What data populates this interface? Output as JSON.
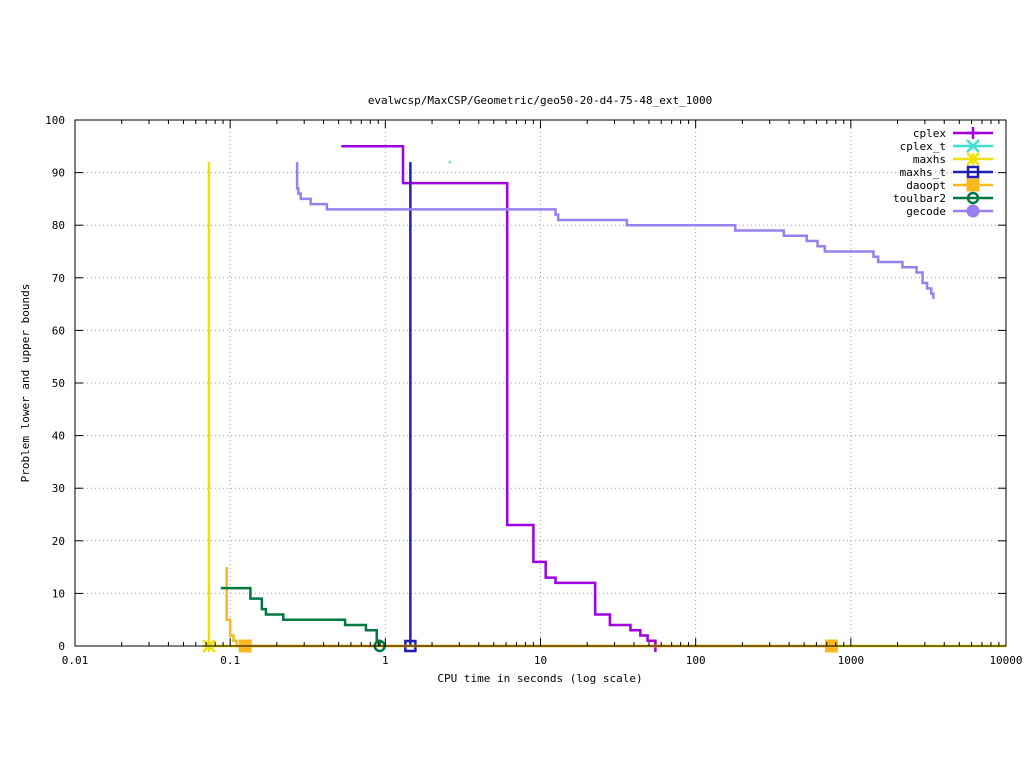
{
  "chart_data": {
    "type": "line",
    "title": "evalwcsp/MaxCSP/Geometric/geo50-20-d4-75-48_ext_1000",
    "xlabel": "CPU time in seconds (log scale)",
    "ylabel": "Problem lower and upper bounds",
    "xscale": "log",
    "xlim": [
      0.01,
      10000
    ],
    "ylim": [
      0,
      100
    ],
    "x_ticks": [
      0.01,
      0.1,
      1,
      10,
      100,
      1000,
      10000
    ],
    "x_tick_labels": [
      "0.01",
      "0.1",
      "1",
      "10",
      "100",
      "1000",
      "10000"
    ],
    "y_ticks": [
      0,
      10,
      20,
      30,
      40,
      50,
      60,
      70,
      80,
      90,
      100
    ],
    "y_tick_labels": [
      "0",
      "10",
      "20",
      "30",
      "40",
      "50",
      "60",
      "70",
      "80",
      "90",
      "100"
    ],
    "legend_position": "top-right",
    "series": [
      {
        "name": "cplex",
        "color": "#a000e0",
        "marker": "plus",
        "step": true,
        "points": [
          [
            0.52,
            95
          ],
          [
            1.3,
            95
          ],
          [
            1.3,
            88
          ],
          [
            6.1,
            88
          ],
          [
            6.1,
            23
          ],
          [
            9.0,
            23
          ],
          [
            9.0,
            16
          ],
          [
            10.8,
            16
          ],
          [
            10.8,
            13
          ],
          [
            12.5,
            13
          ],
          [
            12.5,
            12
          ],
          [
            22.5,
            12
          ],
          [
            22.5,
            6
          ],
          [
            28,
            6
          ],
          [
            28,
            4
          ],
          [
            38,
            4
          ],
          [
            38,
            3
          ],
          [
            44,
            3
          ],
          [
            44,
            2
          ],
          [
            49,
            2
          ],
          [
            49,
            1
          ],
          [
            55,
            1
          ],
          [
            55,
            0
          ]
        ],
        "markers": [
          [
            55,
            0
          ]
        ]
      },
      {
        "name": "cplex_t",
        "color": "#40e0d0",
        "marker": "cross",
        "step": false,
        "points": [
          [
            2.6,
            92
          ]
        ],
        "markers": []
      },
      {
        "name": "maxhs",
        "color": "#f0e000",
        "marker": "star",
        "step": true,
        "points": [
          [
            0.073,
            92
          ],
          [
            0.073,
            0
          ],
          [
            10000,
            0
          ]
        ],
        "markers": [
          [
            0.073,
            0
          ]
        ]
      },
      {
        "name": "maxhs_t",
        "color": "#2020b0",
        "marker": "box",
        "step": true,
        "points": [
          [
            1.45,
            92
          ],
          [
            1.45,
            0
          ]
        ],
        "markers": [
          [
            1.45,
            0
          ]
        ]
      },
      {
        "name": "daoopt",
        "color": "#f8b820",
        "marker": "filled-box",
        "step": true,
        "points": [
          [
            0.095,
            15
          ],
          [
            0.095,
            5
          ],
          [
            0.1,
            5
          ],
          [
            0.1,
            2
          ],
          [
            0.105,
            2
          ],
          [
            0.105,
            1
          ],
          [
            0.11,
            1
          ],
          [
            0.11,
            0
          ],
          [
            760,
            0
          ]
        ],
        "markers": [
          [
            0.125,
            0
          ],
          [
            750,
            0
          ]
        ]
      },
      {
        "name": "toulbar2",
        "color": "#007840",
        "marker": "circle",
        "step": true,
        "points": [
          [
            0.087,
            11
          ],
          [
            0.135,
            11
          ],
          [
            0.135,
            9
          ],
          [
            0.16,
            9
          ],
          [
            0.16,
            7
          ],
          [
            0.17,
            7
          ],
          [
            0.17,
            6
          ],
          [
            0.22,
            6
          ],
          [
            0.22,
            5
          ],
          [
            0.55,
            5
          ],
          [
            0.55,
            4
          ],
          [
            0.75,
            4
          ],
          [
            0.75,
            3
          ],
          [
            0.88,
            3
          ],
          [
            0.88,
            1
          ],
          [
            0.92,
            1
          ],
          [
            0.92,
            0
          ]
        ],
        "markers": [
          [
            0.92,
            0
          ]
        ]
      },
      {
        "name": "gecode",
        "color": "#9880f0",
        "marker": "filled-circle",
        "step": true,
        "points": [
          [
            0.27,
            92
          ],
          [
            0.27,
            87
          ],
          [
            0.275,
            87
          ],
          [
            0.275,
            86
          ],
          [
            0.285,
            86
          ],
          [
            0.285,
            85
          ],
          [
            0.33,
            85
          ],
          [
            0.33,
            84
          ],
          [
            0.42,
            84
          ],
          [
            0.42,
            83
          ],
          [
            12.5,
            83
          ],
          [
            12.5,
            82
          ],
          [
            13,
            82
          ],
          [
            13,
            81
          ],
          [
            36,
            81
          ],
          [
            36,
            80
          ],
          [
            180,
            80
          ],
          [
            180,
            79
          ],
          [
            370,
            79
          ],
          [
            370,
            78
          ],
          [
            520,
            78
          ],
          [
            520,
            77
          ],
          [
            610,
            77
          ],
          [
            610,
            76
          ],
          [
            680,
            76
          ],
          [
            680,
            75
          ],
          [
            1400,
            75
          ],
          [
            1400,
            74
          ],
          [
            1500,
            74
          ],
          [
            1500,
            73
          ],
          [
            2150,
            73
          ],
          [
            2150,
            72
          ],
          [
            2650,
            72
          ],
          [
            2650,
            71
          ],
          [
            2900,
            71
          ],
          [
            2900,
            69
          ],
          [
            3100,
            69
          ],
          [
            3100,
            68
          ],
          [
            3300,
            68
          ],
          [
            3300,
            67
          ],
          [
            3400,
            67
          ],
          [
            3400,
            66
          ]
        ],
        "markers": []
      }
    ]
  }
}
